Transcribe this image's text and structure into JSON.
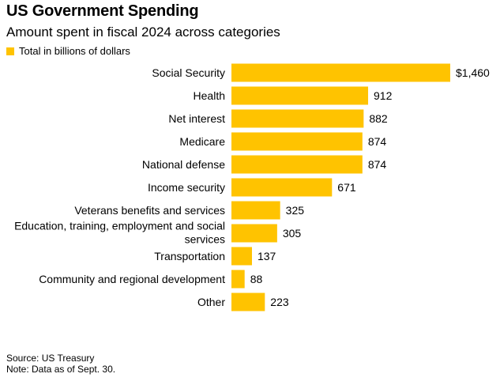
{
  "title": "US Government Spending",
  "subtitle": "Amount spent in fiscal 2024 across categories",
  "legend_label": "Total in billions of dollars",
  "bar_color": "#FFC300",
  "footer": {
    "source": "Source: US Treasury",
    "note": "Note: Data as of Sept. 30."
  },
  "chart_data": {
    "type": "bar",
    "orientation": "horizontal",
    "title": "US Government Spending",
    "subtitle": "Amount spent in fiscal 2024 across categories",
    "series": [
      {
        "name": "Total in billions of dollars"
      }
    ],
    "categories": [
      {
        "name": "Social Security",
        "lines": [
          "Social Security"
        ]
      },
      {
        "name": "Health",
        "lines": [
          "Health"
        ]
      },
      {
        "name": "Net interest",
        "lines": [
          "Net interest"
        ]
      },
      {
        "name": "Medicare",
        "lines": [
          "Medicare"
        ]
      },
      {
        "name": "National defense",
        "lines": [
          "National defense"
        ]
      },
      {
        "name": "Income security",
        "lines": [
          "Income security"
        ]
      },
      {
        "name": "Veterans benefits and services",
        "lines": [
          "Veterans benefits and services"
        ]
      },
      {
        "name": "Education, training, employment and social services",
        "lines": [
          "Education, training, employment and social",
          "services"
        ]
      },
      {
        "name": "Transportation",
        "lines": [
          "Transportation"
        ]
      },
      {
        "name": "Community and regional development",
        "lines": [
          "Community and regional development"
        ]
      },
      {
        "name": "Other",
        "lines": [
          "Other"
        ]
      }
    ],
    "values": [
      1460,
      912,
      882,
      874,
      874,
      671,
      325,
      305,
      137,
      88,
      223
    ],
    "value_labels": [
      "$1,460",
      "912",
      "882",
      "874",
      "874",
      "671",
      "325",
      "305",
      "137",
      "88",
      "223"
    ],
    "xlim": [
      0,
      1460
    ]
  }
}
